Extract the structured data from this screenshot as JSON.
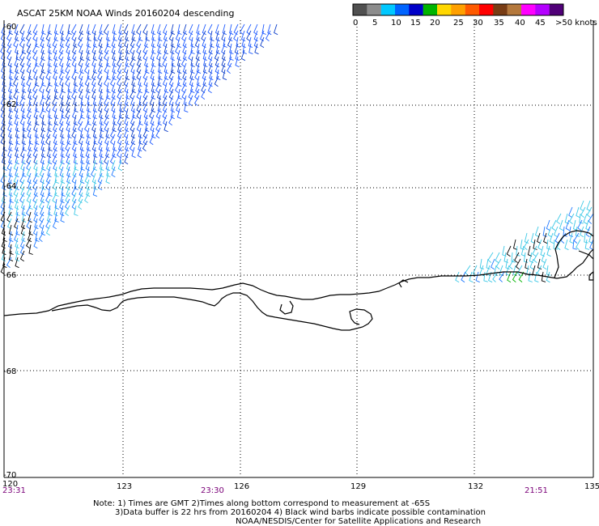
{
  "title": "ASCAT 25KM NOAA Winds 20160204 descending",
  "legend": {
    "colors": [
      "#505050",
      "#8c8c8c",
      "#00c8ff",
      "#0064ff",
      "#0000c8",
      "#00b400",
      "#ffd700",
      "#ffa000",
      "#ff5a00",
      "#ff0000",
      "#783c14",
      "#b4783c",
      "#ff00ff",
      "#b400ff",
      "#500078"
    ],
    "labels": [
      "0",
      "5",
      "10",
      "15",
      "20",
      "25",
      "30",
      "35",
      "40",
      "45",
      ">50 knots"
    ]
  },
  "map": {
    "lon_labels": [
      "120",
      "123",
      "126",
      "129",
      "132",
      "135"
    ],
    "lat_labels": [
      "-60",
      "-62",
      "-64",
      "-66",
      "-68",
      "-70"
    ],
    "times": [
      "23:31",
      "23:30",
      "21:51"
    ]
  },
  "notes": {
    "line1": "Note: 1) Times are GMT 2)Times along bottom correspond to measurement at -65S",
    "line2": "3)Data buffer is 22 hrs from 20160204 4) Black wind barbs indicate possible contamination",
    "line3": "NOAA/NESDIS/Center for Satellite Applications and Research"
  }
}
